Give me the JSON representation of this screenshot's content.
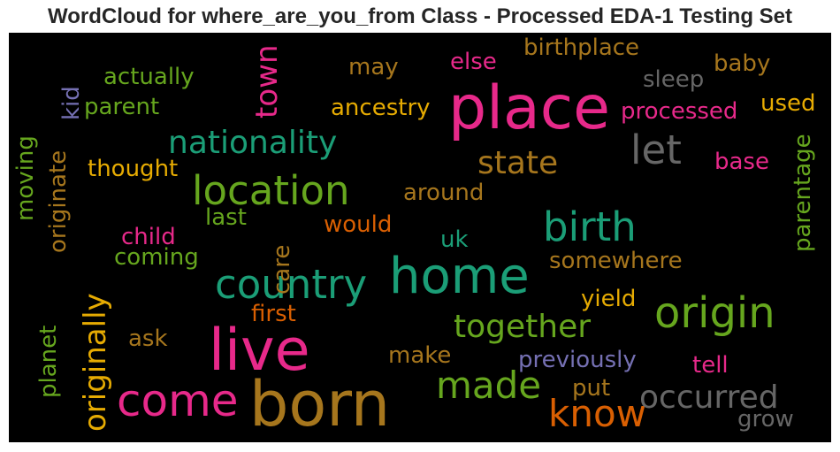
{
  "title": "WordCloud for where_are_you_from Class - Processed EDA-1 Testing Set",
  "words": [
    {
      "text": "place",
      "color": "#e7298a"
    },
    {
      "text": "born",
      "color": "#a6761d"
    },
    {
      "text": "live",
      "color": "#e7298a"
    },
    {
      "text": "home",
      "color": "#1b9e77"
    },
    {
      "text": "origin",
      "color": "#66a61e"
    },
    {
      "text": "come",
      "color": "#e7298a"
    },
    {
      "text": "location",
      "color": "#66a61e"
    },
    {
      "text": "country",
      "color": "#1b9e77"
    },
    {
      "text": "birth",
      "color": "#1b9e77"
    },
    {
      "text": "nationality",
      "color": "#1b9e77"
    },
    {
      "text": "made",
      "color": "#66a61e"
    },
    {
      "text": "know",
      "color": "#d95f02"
    },
    {
      "text": "originally",
      "color": "#e6ab02"
    },
    {
      "text": "let",
      "color": "#666666"
    },
    {
      "text": "together",
      "color": "#66a61e"
    },
    {
      "text": "occurred",
      "color": "#666666"
    },
    {
      "text": "state",
      "color": "#a6761d"
    },
    {
      "text": "town",
      "color": "#e7298a"
    },
    {
      "text": "previously",
      "color": "#7570b3"
    },
    {
      "text": "ancestry",
      "color": "#e6ab02"
    },
    {
      "text": "processed",
      "color": "#e7298a"
    },
    {
      "text": "birthplace",
      "color": "#a6761d"
    },
    {
      "text": "actually",
      "color": "#66a61e"
    },
    {
      "text": "parentage",
      "color": "#66a61e"
    },
    {
      "text": "thought",
      "color": "#e6ab02"
    },
    {
      "text": "parent",
      "color": "#66a61e"
    },
    {
      "text": "baby",
      "color": "#a6761d"
    },
    {
      "text": "sleep",
      "color": "#666666"
    },
    {
      "text": "else",
      "color": "#e7298a"
    },
    {
      "text": "may",
      "color": "#a6761d"
    },
    {
      "text": "used",
      "color": "#e6ab02"
    },
    {
      "text": "base",
      "color": "#e7298a"
    },
    {
      "text": "around",
      "color": "#a6761d"
    },
    {
      "text": "would",
      "color": "#d95f02"
    },
    {
      "text": "last",
      "color": "#66a61e"
    },
    {
      "text": "child",
      "color": "#e7298a"
    },
    {
      "text": "coming",
      "color": "#66a61e"
    },
    {
      "text": "uk",
      "color": "#1b9e77"
    },
    {
      "text": "somewhere",
      "color": "#a6761d"
    },
    {
      "text": "first",
      "color": "#d95f02"
    },
    {
      "text": "yield",
      "color": "#e6ab02"
    },
    {
      "text": "ask",
      "color": "#a6761d"
    },
    {
      "text": "make",
      "color": "#a6761d"
    },
    {
      "text": "put",
      "color": "#a6761d"
    },
    {
      "text": "tell",
      "color": "#e7298a"
    },
    {
      "text": "grow",
      "color": "#666666"
    },
    {
      "text": "kid",
      "color": "#7570b3"
    },
    {
      "text": "originate",
      "color": "#a6761d"
    },
    {
      "text": "moving",
      "color": "#66a61e"
    },
    {
      "text": "care",
      "color": "#a6761d"
    },
    {
      "text": "planet",
      "color": "#66a61e"
    }
  ]
}
